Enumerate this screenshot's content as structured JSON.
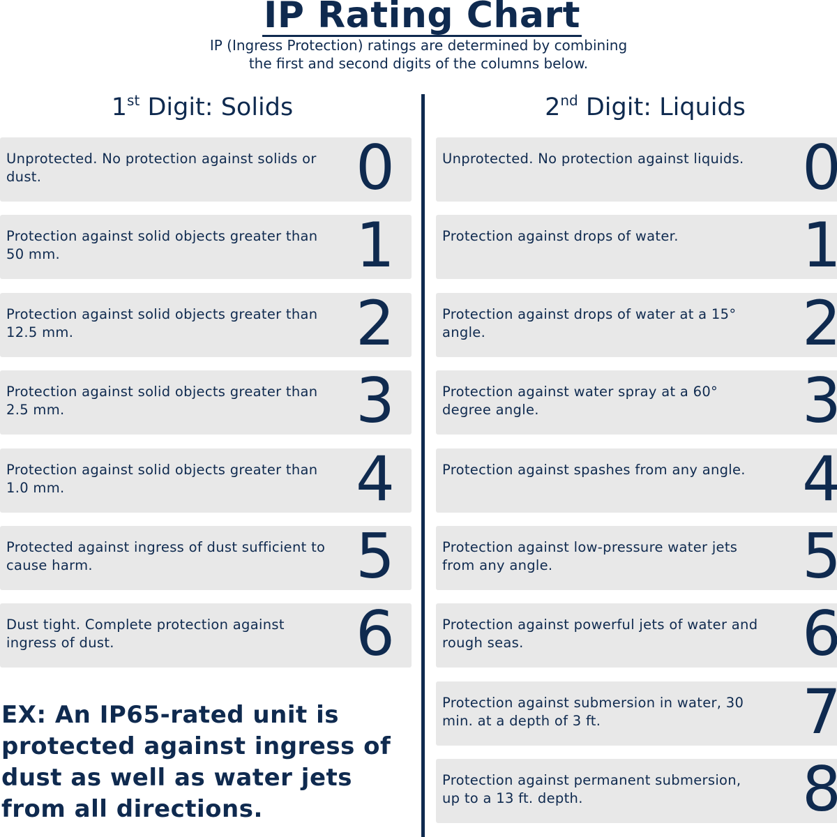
{
  "title": "IP Rating Chart",
  "subtitle_lines": [
    "IP (Ingress Protection) ratings are determined by combining",
    "the first and second digits of the columns below."
  ],
  "solids": {
    "ordinal": "1",
    "ordinal_suffix": "st",
    "heading": "Digit: Solids",
    "rows": [
      {
        "digit": "0",
        "text": "Unprotected. No protection against solids or dust."
      },
      {
        "digit": "1",
        "text": "Protection against solid objects greater than 50 mm."
      },
      {
        "digit": "2",
        "text": "Protection against solid objects greater than 12.5 mm."
      },
      {
        "digit": "3",
        "text": "Protection against solid objects greater than 2.5 mm."
      },
      {
        "digit": "4",
        "text": "Protection against solid objects greater than 1.0 mm."
      },
      {
        "digit": "5",
        "text": "Protected against ingress of dust sufficient to cause harm."
      },
      {
        "digit": "6",
        "text": "Dust tight. Complete protection against ingress of dust."
      }
    ]
  },
  "liquids": {
    "ordinal": "2",
    "ordinal_suffix": "nd",
    "heading": "Digit: Liquids",
    "rows": [
      {
        "digit": "0",
        "text": "Unprotected. No protection against liquids."
      },
      {
        "digit": "1",
        "text": "Protection against drops of water."
      },
      {
        "digit": "2",
        "text": "Protection against drops of water at a 15° angle."
      },
      {
        "digit": "3",
        "text": "Protection against water spray at a 60° degree angle."
      },
      {
        "digit": "4",
        "text": "Protection against spashes from any angle."
      },
      {
        "digit": "5",
        "text": "Protection against low-pressure water jets from any angle."
      },
      {
        "digit": "6",
        "text": "Protection against powerful jets of water and rough seas."
      },
      {
        "digit": "7",
        "text": "Protection against submersion in water, 30 min. at a depth of 3 ft."
      },
      {
        "digit": "8",
        "text": "Protection against permanent submersion, up to a 13 ft. depth."
      }
    ]
  },
  "example": "EX: An IP65-rated unit is protected against ingress of dust as well as water jets from all directions.",
  "colors": {
    "navy": "#0f2a4f",
    "box": "#e8e8e8"
  }
}
